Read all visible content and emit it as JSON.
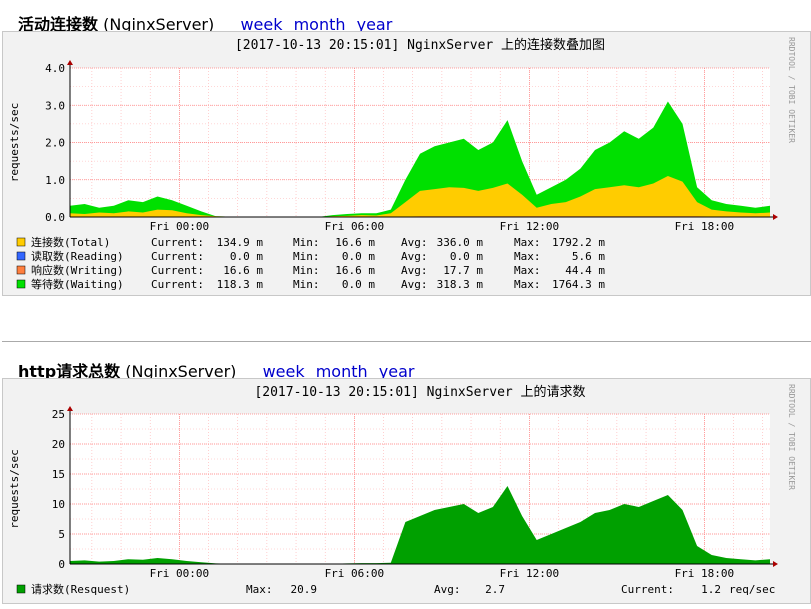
{
  "sections": [
    {
      "title": "活动连接数",
      "server": "(NginxServer)",
      "links": [
        "week",
        "month",
        "year"
      ]
    },
    {
      "title": "http请求总数",
      "server": "(NginxServer)",
      "links": [
        "week",
        "month",
        "year"
      ]
    }
  ],
  "watermark": "RRDTOOL / TOBI OETIKER",
  "colors": {
    "total": "#FFCC00",
    "reading": "#3366FF",
    "writing": "#FF7F3F",
    "waiting": "#00E000",
    "requests": "#00A000",
    "grid_major": "#ff8080",
    "grid_minor": "#ffb0b0",
    "canvas_bg": "#ffffff",
    "panel_bg": "#f2f2f2"
  },
  "chart_data": [
    {
      "type": "area",
      "title": "[2017-10-13 20:15:01] NginxServer 上的连接数叠加图",
      "ylabel": "requests/sec",
      "ylim": [
        0,
        4.0
      ],
      "yticks": [
        "0.0",
        "1.0",
        "2.0",
        "3.0",
        "4.0"
      ],
      "ytick_values": [
        0,
        1,
        2,
        3,
        4
      ],
      "xticks": [
        "Fri 00:00",
        "Fri 06:00",
        "Fri 12:00",
        "Fri 18:00"
      ],
      "xtick_hours": [
        3.75,
        9.75,
        15.75,
        21.75
      ],
      "x_hours": [
        0,
        0.5,
        1,
        1.5,
        2,
        2.5,
        3,
        3.5,
        4,
        4.5,
        5,
        5.5,
        6,
        6.5,
        7,
        7.5,
        8,
        8.5,
        9,
        9.5,
        10,
        10.5,
        11,
        11.5,
        12,
        12.5,
        13,
        13.5,
        14,
        14.5,
        15,
        15.5,
        16,
        16.5,
        17,
        17.5,
        18,
        18.5,
        19,
        19.5,
        20,
        20.5,
        21,
        21.5,
        22,
        22.5,
        23,
        23.5,
        24
      ],
      "series": [
        {
          "name": "连接数(Total)",
          "values": [
            0.1,
            0.08,
            0.12,
            0.1,
            0.15,
            0.12,
            0.2,
            0.18,
            0.1,
            0.05,
            0.02,
            0.01,
            0,
            0,
            0,
            0,
            0,
            0,
            0.02,
            0.03,
            0.05,
            0.04,
            0.1,
            0.4,
            0.7,
            0.75,
            0.8,
            0.78,
            0.7,
            0.78,
            0.9,
            0.6,
            0.25,
            0.35,
            0.4,
            0.55,
            0.75,
            0.8,
            0.85,
            0.8,
            0.9,
            1.1,
            0.95,
            0.4,
            0.2,
            0.15,
            0.12,
            0.1,
            0.12
          ]
        },
        {
          "name": "读取数(Reading)",
          "values": [
            0,
            0,
            0,
            0,
            0,
            0,
            0,
            0,
            0,
            0,
            0,
            0,
            0,
            0,
            0,
            0,
            0,
            0,
            0,
            0,
            0,
            0,
            0,
            0,
            0,
            0,
            0,
            0,
            0,
            0,
            0,
            0,
            0,
            0,
            0,
            0,
            0,
            0,
            0,
            0,
            0,
            0,
            0,
            0,
            0,
            0,
            0,
            0,
            0
          ]
        },
        {
          "name": "响应数(Writing)",
          "values": [
            0.01,
            0.01,
            0.01,
            0.01,
            0.01,
            0.01,
            0.01,
            0.01,
            0.01,
            0.01,
            0.01,
            0.01,
            0.01,
            0.01,
            0.01,
            0.01,
            0.01,
            0.01,
            0.01,
            0.01,
            0.01,
            0.01,
            0.01,
            0.01,
            0.02,
            0.02,
            0.02,
            0.02,
            0.02,
            0.02,
            0.02,
            0.02,
            0.02,
            0.02,
            0.02,
            0.02,
            0.02,
            0.02,
            0.02,
            0.02,
            0.02,
            0.02,
            0.02,
            0.02,
            0.01,
            0.01,
            0.01,
            0.01,
            0.01
          ]
        },
        {
          "name": "等待数(Waiting)",
          "values": [
            0.3,
            0.35,
            0.25,
            0.3,
            0.45,
            0.4,
            0.55,
            0.45,
            0.3,
            0.15,
            0.02,
            0.01,
            0,
            0,
            0,
            0,
            0,
            0,
            0.05,
            0.08,
            0.1,
            0.1,
            0.2,
            1.0,
            1.7,
            1.9,
            2.0,
            2.1,
            1.8,
            2.0,
            2.6,
            1.5,
            0.6,
            0.8,
            1.0,
            1.3,
            1.8,
            2.0,
            2.3,
            2.1,
            2.4,
            3.1,
            2.5,
            0.8,
            0.45,
            0.35,
            0.3,
            0.25,
            0.3
          ]
        }
      ],
      "legend": [
        {
          "key": "total",
          "label": "连接数(Total)",
          "current": "134.9 m",
          "min": "16.6 m",
          "avg": "336.0 m",
          "max": "1792.2 m"
        },
        {
          "key": "reading",
          "label": "读取数(Reading)",
          "current": "0.0 m",
          "min": "0.0 m",
          "avg": "0.0 m",
          "max": "5.6 m"
        },
        {
          "key": "writing",
          "label": "响应数(Writing)",
          "current": "16.6 m",
          "min": "16.6 m",
          "avg": "17.7 m",
          "max": "44.4 m"
        },
        {
          "key": "waiting",
          "label": "等待数(Waiting)",
          "current": "118.3 m",
          "min": "0.0 m",
          "avg": "318.3 m",
          "max": "1764.3 m"
        }
      ],
      "legend_labels": {
        "current": "Current:",
        "min": "Min:",
        "avg": "Avg:",
        "max": "Max:"
      }
    },
    {
      "type": "area",
      "title": "[2017-10-13 20:15:01] NginxServer 上的请求数",
      "ylabel": "requests/sec",
      "ylim": [
        0,
        25
      ],
      "yticks": [
        "0",
        "5",
        "10",
        "15",
        "20",
        "25"
      ],
      "ytick_values": [
        0,
        5,
        10,
        15,
        20,
        25
      ],
      "xticks": [
        "Fri 00:00",
        "Fri 06:00",
        "Fri 12:00",
        "Fri 18:00"
      ],
      "xtick_hours": [
        3.75,
        9.75,
        15.75,
        21.75
      ],
      "x_hours": [
        0,
        0.5,
        1,
        1.5,
        2,
        2.5,
        3,
        3.5,
        4,
        4.5,
        5,
        5.5,
        6,
        6.5,
        7,
        7.5,
        8,
        8.5,
        9,
        9.5,
        10,
        10.5,
        11,
        11.5,
        12,
        12.5,
        13,
        13.5,
        14,
        14.5,
        15,
        15.5,
        16,
        16.5,
        17,
        17.5,
        18,
        18.5,
        19,
        19.5,
        20,
        20.5,
        21,
        21.5,
        22,
        22.5,
        23,
        23.5,
        24
      ],
      "series": [
        {
          "name": "请求数(Resquest)",
          "values": [
            0.5,
            0.6,
            0.4,
            0.5,
            0.8,
            0.7,
            1.0,
            0.8,
            0.5,
            0.3,
            0.1,
            0.05,
            0,
            0,
            0,
            0,
            0,
            0,
            0.05,
            0.1,
            0.15,
            0.15,
            0.2,
            7.0,
            8.0,
            9.0,
            9.5,
            10.0,
            8.5,
            9.5,
            13.0,
            8.0,
            4.0,
            5.0,
            6.0,
            7.0,
            8.5,
            9.0,
            10.0,
            9.5,
            10.5,
            11.5,
            9.0,
            3.0,
            1.5,
            1.0,
            0.8,
            0.6,
            0.8
          ]
        }
      ],
      "legend": [
        {
          "key": "requests",
          "label": "请求数(Resquest)",
          "max": "20.9",
          "avg": "2.7",
          "current": "1.2",
          "unit": "req/sec"
        }
      ],
      "legend_labels": {
        "current": "Current:",
        "avg": "Avg:",
        "max": "Max:"
      }
    }
  ]
}
